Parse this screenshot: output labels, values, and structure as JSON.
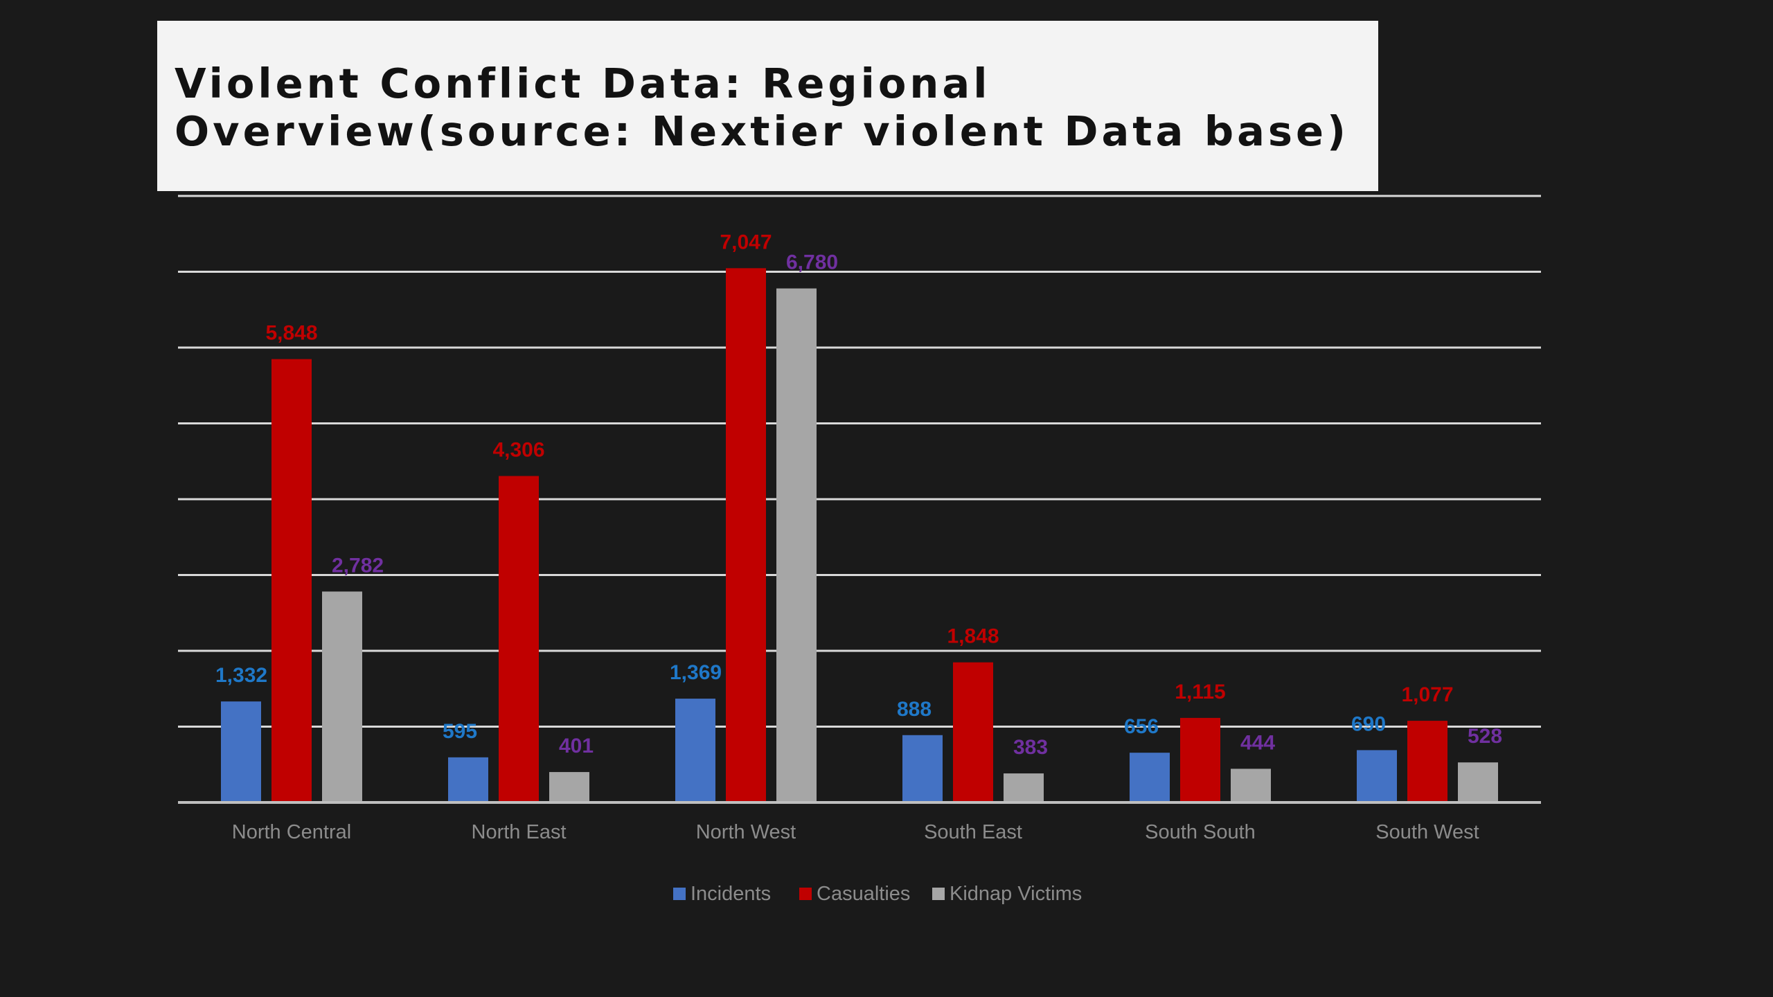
{
  "title": "Violent Conflict Data: Regional Overview(source: Nextier violent Data base)",
  "chart_data": {
    "type": "bar",
    "categories": [
      "North Central",
      "North East",
      "North West",
      "South East",
      "South South",
      "South West"
    ],
    "series": [
      {
        "name": "Incidents",
        "values": [
          1332,
          595,
          1369,
          888,
          656,
          690
        ],
        "color": "#4472c4",
        "label_color": "#1f78c8"
      },
      {
        "name": "Casualties",
        "values": [
          5848,
          4306,
          7047,
          1848,
          1115,
          1077
        ],
        "color": "#c00000",
        "label_color": "#c00000"
      },
      {
        "name": "Kidnap Victims",
        "values": [
          2782,
          401,
          6780,
          383,
          444,
          528
        ],
        "color": "#a6a6a6",
        "label_color": "#7030a0"
      }
    ],
    "ylim": [
      0,
      8000
    ],
    "grid": true,
    "legend_position": "bottom"
  }
}
